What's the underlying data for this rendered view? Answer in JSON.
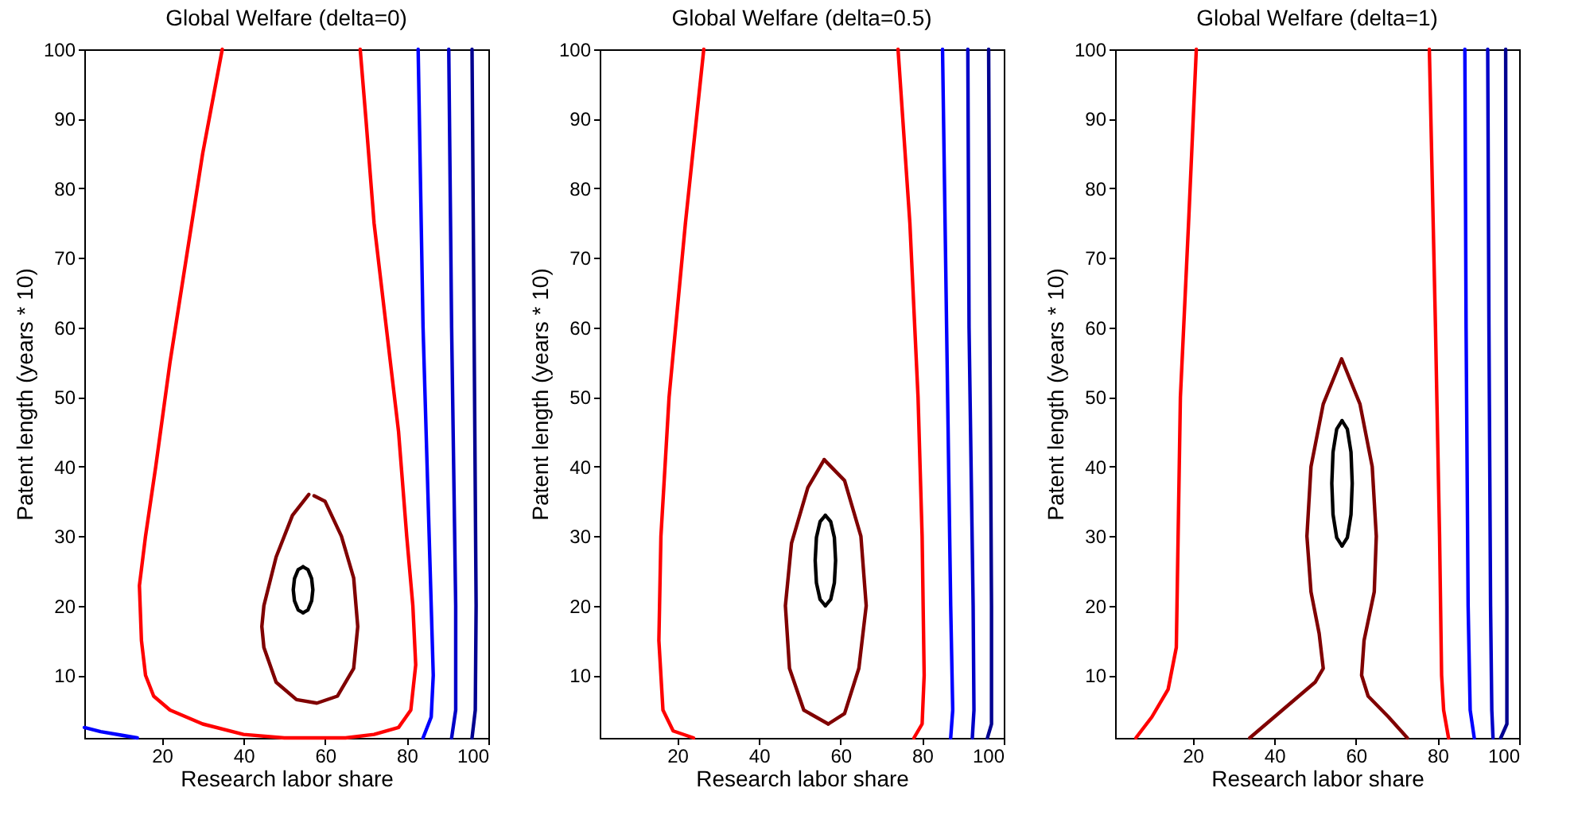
{
  "chart_data": [
    {
      "type": "line",
      "title": "Global Welfare (delta=0)",
      "xlabel": "Research labor share",
      "ylabel": "Patent length (years * 10)",
      "xlim": [
        1,
        100
      ],
      "ylim": [
        1,
        100
      ],
      "xticks": [
        20,
        40,
        60,
        80,
        100
      ],
      "yticks": [
        10,
        20,
        30,
        40,
        50,
        60,
        70,
        80,
        90,
        100
      ],
      "series": [
        {
          "color": "#ff0000",
          "x": [
            34.8,
            30,
            26,
            22,
            18.5,
            16,
            14.5,
            15,
            16,
            18,
            22,
            30,
            40,
            50,
            58,
            65,
            72,
            78,
            81,
            82.2,
            81.5,
            80,
            78,
            75,
            72,
            70,
            68.6
          ],
          "values": [
            100,
            85,
            70,
            55,
            40,
            30,
            22.9,
            15,
            10,
            7,
            5,
            3,
            1.5,
            1,
            1,
            1,
            1.5,
            2.5,
            5,
            11.5,
            20,
            30,
            45,
            60,
            75,
            90,
            100
          ]
        },
        {
          "color": "#0000ff",
          "x": [
            1,
            5,
            10,
            14
          ],
          "values": [
            2.5,
            1.9,
            1.4,
            1
          ]
        },
        {
          "color": "#800000",
          "x": [
            56,
            52,
            48,
            45,
            44.5,
            45,
            48,
            53,
            58,
            63,
            67,
            68,
            67,
            64,
            60,
            57.3
          ],
          "values": [
            36,
            33,
            27,
            20,
            17,
            14,
            9,
            6.5,
            6,
            7,
            11,
            17,
            24,
            30,
            35,
            35.8
          ]
        },
        {
          "color": "#000000",
          "x": [
            54.6,
            53.4,
            52.5,
            52.2,
            52.5,
            53.4,
            54.6
          ],
          "values": [
            25.6,
            25.2,
            23.9,
            22.3,
            20.7,
            19.4,
            19.0
          ]
        },
        {
          "color": "#000000",
          "x": [
            54.6,
            55.8,
            56.7,
            57.0,
            56.7,
            55.8,
            54.6
          ],
          "values": [
            19.0,
            19.4,
            20.7,
            22.3,
            23.9,
            25.2,
            25.6
          ]
        },
        {
          "color": "#0000ff",
          "x": [
            82.8,
            84,
            85.5,
            86.5,
            86,
            84
          ],
          "values": [
            100,
            60,
            30,
            10,
            4,
            1
          ]
        },
        {
          "color": "#0000c8",
          "x": [
            90.3,
            91,
            92,
            92,
            91
          ],
          "values": [
            100,
            60,
            20,
            5,
            1
          ]
        },
        {
          "color": "#000090",
          "x": [
            96,
            96.5,
            97,
            96.8,
            96
          ],
          "values": [
            100,
            60,
            20,
            5,
            1
          ]
        }
      ]
    },
    {
      "type": "line",
      "title": "Global Welfare (delta=0.5)",
      "xlabel": "Research labor share",
      "ylabel": "Patent length (years * 10)",
      "xlim": [
        1,
        100
      ],
      "ylim": [
        1,
        100
      ],
      "xticks": [
        20,
        40,
        60,
        80,
        100
      ],
      "yticks": [
        10,
        20,
        30,
        40,
        50,
        60,
        70,
        80,
        90,
        100
      ],
      "series": [
        {
          "color": "#ff0000",
          "x": [
            26.5,
            22,
            18,
            16,
            15.5,
            16.5,
            19,
            24
          ],
          "values": [
            100,
            75,
            50,
            30,
            15,
            5,
            2,
            1
          ]
        },
        {
          "color": "#ff0000",
          "x": [
            74.1,
            77,
            79,
            80,
            80.5,
            80,
            78
          ],
          "values": [
            100,
            75,
            50,
            30,
            10,
            3,
            1
          ]
        },
        {
          "color": "#800000",
          "x": [
            56,
            52,
            48,
            46.5,
            47.5,
            51,
            57
          ],
          "values": [
            41,
            37,
            29,
            20,
            11,
            5,
            3
          ]
        },
        {
          "color": "#800000",
          "x": [
            57,
            61,
            64.5,
            66.3,
            65,
            61,
            56
          ],
          "values": [
            3,
            4.5,
            11,
            20,
            30,
            38,
            41
          ]
        },
        {
          "color": "#000000",
          "x": [
            56.3,
            55.0,
            54.1,
            53.8,
            54.1,
            55.0,
            56.3
          ],
          "values": [
            33.0,
            32.1,
            29.8,
            26.5,
            23.3,
            20.9,
            20.0
          ]
        },
        {
          "color": "#000000",
          "x": [
            56.3,
            57.6,
            58.5,
            58.8,
            58.5,
            57.6,
            56.3
          ],
          "values": [
            20.0,
            20.9,
            23.3,
            26.5,
            29.8,
            32.1,
            33.0
          ]
        },
        {
          "color": "#0000ff",
          "x": [
            85,
            86,
            87,
            87.5,
            87
          ],
          "values": [
            100,
            60,
            20,
            5,
            1
          ]
        },
        {
          "color": "#0000c8",
          "x": [
            91.2,
            91.5,
            92.5,
            92.7,
            92.3
          ],
          "values": [
            100,
            60,
            20,
            5,
            1
          ]
        },
        {
          "color": "#000090",
          "x": [
            96.3,
            96.6,
            97,
            97,
            96
          ],
          "values": [
            100,
            60,
            20,
            3,
            1
          ]
        }
      ]
    },
    {
      "type": "line",
      "title": "Global Welfare (delta=1)",
      "xlabel": "Research labor share",
      "ylabel": "Patent length (years * 10)",
      "xlim": [
        1,
        100
      ],
      "ylim": [
        1,
        100
      ],
      "xticks": [
        20,
        40,
        60,
        80,
        100
      ],
      "yticks": [
        10,
        20,
        30,
        40,
        50,
        60,
        70,
        80,
        90,
        100
      ],
      "series": [
        {
          "color": "#ff0000",
          "x": [
            20.9,
            19,
            17,
            16.3,
            16,
            14,
            10,
            6.1
          ],
          "values": [
            100,
            75,
            50,
            25,
            14,
            8,
            4,
            1
          ]
        },
        {
          "color": "#ff0000",
          "x": [
            78,
            79.5,
            80.5,
            81,
            81.5,
            82.7
          ],
          "values": [
            100,
            60,
            30,
            10,
            5,
            1
          ]
        },
        {
          "color": "#800000",
          "x": [
            34,
            42,
            50,
            52,
            51,
            49,
            48,
            49,
            52,
            56.5,
            61,
            64,
            65,
            64.5,
            62,
            61.4,
            63,
            68,
            72.6
          ],
          "values": [
            1,
            5,
            9,
            11,
            16,
            22,
            30,
            40,
            49,
            55.5,
            49,
            40,
            30,
            22,
            15,
            10,
            7,
            4,
            1
          ]
        },
        {
          "color": "#000000",
          "x": [
            56.6,
            55.3,
            54.4,
            54.1,
            54.4,
            55.3,
            56.6
          ],
          "values": [
            46.6,
            45.4,
            42.1,
            37.6,
            33.1,
            29.8,
            28.6
          ]
        },
        {
          "color": "#000000",
          "x": [
            56.6,
            57.9,
            58.8,
            59.1,
            58.8,
            57.9,
            56.6
          ],
          "values": [
            28.6,
            29.8,
            33.1,
            37.6,
            42.1,
            45.4,
            46.6
          ]
        },
        {
          "color": "#0000ff",
          "x": [
            86.7,
            87,
            87.5,
            88,
            89
          ],
          "values": [
            100,
            60,
            20,
            5,
            1
          ]
        },
        {
          "color": "#0000c8",
          "x": [
            92.3,
            92.6,
            93,
            93.3,
            93.6
          ],
          "values": [
            100,
            60,
            20,
            5,
            1
          ]
        },
        {
          "color": "#000090",
          "x": [
            96.7,
            96.8,
            97,
            97,
            95.5
          ],
          "values": [
            100,
            60,
            20,
            3,
            1
          ]
        }
      ]
    }
  ]
}
